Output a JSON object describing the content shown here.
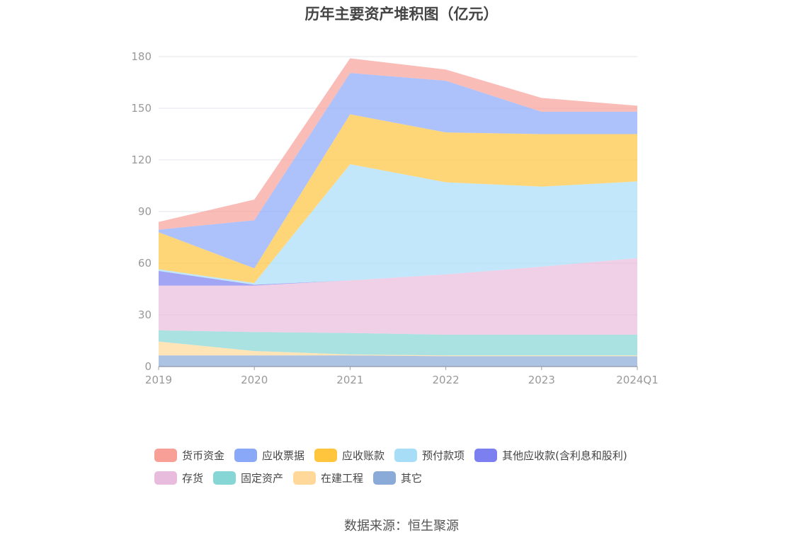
{
  "chart_data": {
    "type": "area",
    "stacked": true,
    "title": "历年主要资产堆积图（亿元）",
    "categories": [
      "2019",
      "2020",
      "2021",
      "2022",
      "2023",
      "2024Q1"
    ],
    "ylim": [
      0,
      180
    ],
    "yticks": [
      0,
      30,
      60,
      90,
      120,
      150,
      180
    ],
    "grid": true,
    "legend_position": "bottom",
    "series": [
      {
        "name": "其它",
        "color": "#8aaad8",
        "values": [
          6.5,
          6.5,
          6.5,
          6,
          6,
          6
        ]
      },
      {
        "name": "在建工程",
        "color": "#ffd89a",
        "values": [
          8,
          2.5,
          0.5,
          0.5,
          0.5,
          0.5
        ]
      },
      {
        "name": "固定资产",
        "color": "#86d6d6",
        "values": [
          6.5,
          11,
          12.5,
          12,
          12,
          12
        ]
      },
      {
        "name": "存货",
        "color": "#e8bcdc",
        "values": [
          26,
          27,
          30.5,
          35,
          39.5,
          44.5
        ]
      },
      {
        "name": "其他应收款(含利息和股利)",
        "color": "#7b7ff0",
        "values": [
          8.5,
          0.5,
          0,
          0,
          0,
          0
        ]
      },
      {
        "name": "预付款项",
        "color": "#a8ddf8",
        "values": [
          1,
          1,
          67.5,
          53.5,
          46.5,
          44.5
        ]
      },
      {
        "name": "应收账款",
        "color": "#ffc53d",
        "values": [
          21.5,
          8.5,
          29,
          29,
          30.5,
          27.5
        ]
      },
      {
        "name": "应收票据",
        "color": "#8aa8f8",
        "values": [
          1.5,
          28,
          24,
          30,
          13,
          13
        ]
      },
      {
        "name": "货币资金",
        "color": "#f8a098",
        "values": [
          4.5,
          12,
          8.5,
          6.5,
          8,
          3.5
        ]
      }
    ]
  },
  "legend_order": [
    [
      "货币资金",
      "应收票据",
      "应收账款",
      "预付款项",
      "其他应收款(含利息和股利)"
    ],
    [
      "存货",
      "固定资产",
      "在建工程",
      "其它"
    ]
  ],
  "source": "数据来源：恒生聚源"
}
